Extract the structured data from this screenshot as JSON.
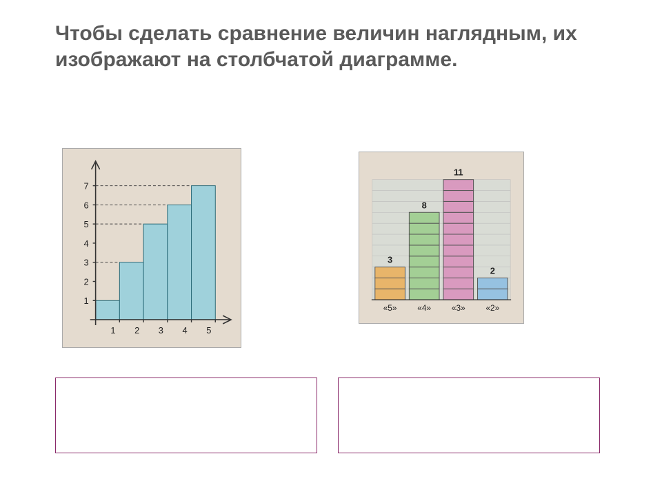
{
  "title": {
    "text": "Чтобы сделать сравнение величин наглядным, их изображают на столбчатой диаграмме.",
    "color": "#5a5a5a",
    "fontsize": 30
  },
  "left_chart": {
    "type": "bar",
    "photo_bg": "#e4dbcf",
    "bar_fill": "#9fd1db",
    "categories": [
      "1",
      "2",
      "3",
      "4",
      "5"
    ],
    "values": [
      1,
      3,
      5,
      6,
      7
    ],
    "ylim": [
      0,
      7
    ],
    "yticks": [
      1,
      2,
      3,
      4,
      5,
      6,
      7
    ],
    "xticks": [
      1,
      2,
      3,
      4,
      5
    ],
    "plot_bg": "#e4dbcf"
  },
  "right_chart": {
    "type": "stacked-blocks",
    "photo_bg": "#e4dbcf",
    "grid_fill": "#d9dcd5",
    "categories": [
      "«5»",
      "«4»",
      "«3»",
      "«2»"
    ],
    "values": [
      3,
      8,
      11,
      2
    ],
    "colors": [
      "#e8b56a",
      "#a3cf95",
      "#d99abf",
      "#96c2e1"
    ],
    "block_height_units": 1
  },
  "caption_left": {
    "text": "",
    "border_color": "#8a2a6a"
  },
  "caption_right": {
    "text": "",
    "border_color": "#8a2a6a"
  }
}
